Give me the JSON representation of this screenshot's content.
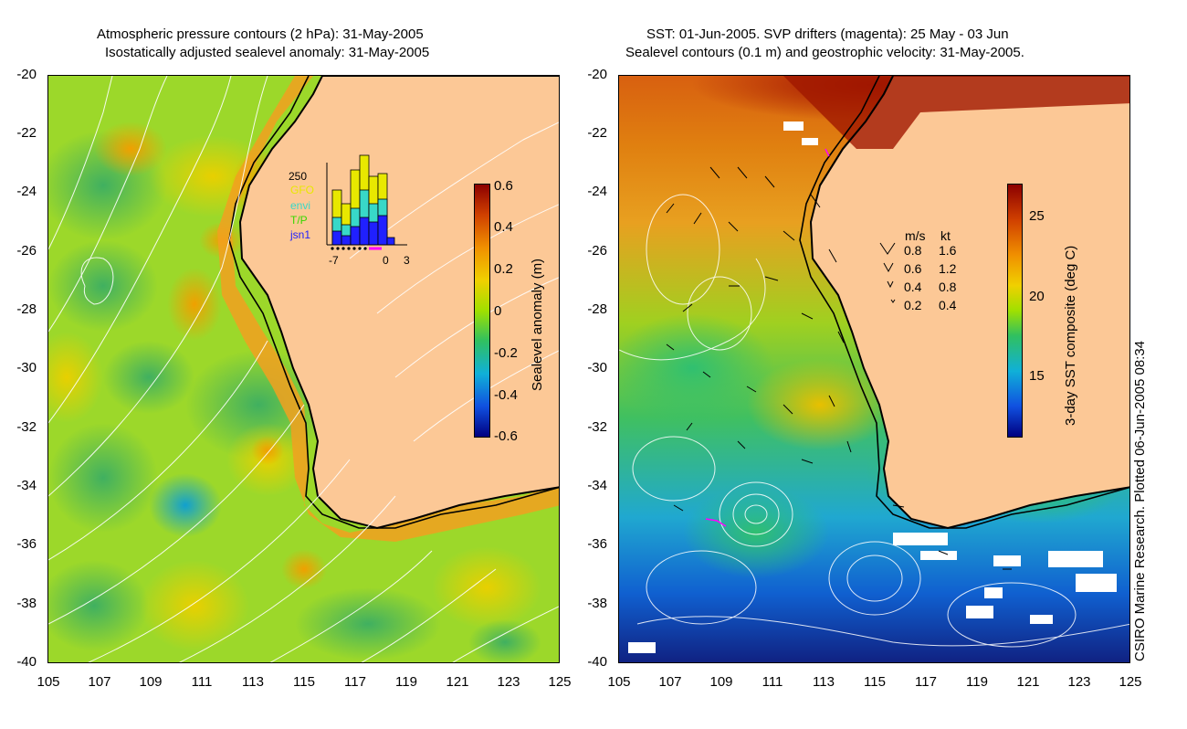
{
  "left": {
    "title_line1": "Atmospheric pressure contours (2 hPa): 31-May-2005",
    "title_line2": "Isostatically adjusted sealevel anomaly: 31-May-2005",
    "colorbar_label": "Sealevel anomaly (m)",
    "colorbar_ticks": [
      "0.6",
      "0.4",
      "0.2",
      "0",
      "-0.2",
      "-0.4",
      "-0.6"
    ],
    "colorbar_range": [
      -0.6,
      0.6
    ],
    "inset": {
      "max_label": "250",
      "legend": [
        {
          "label": "GFO",
          "color": "#e8e800"
        },
        {
          "label": "envi",
          "color": "#38d8c8"
        },
        {
          "label": "T/P",
          "color": "#38d800"
        },
        {
          "label": "jsn1",
          "color": "#2020ff"
        }
      ],
      "x_ticks": [
        "-7",
        "0",
        "3"
      ]
    }
  },
  "right": {
    "title_line1": "SST: 01-Jun-2005. SVP drifters (magenta): 25 May - 03 Jun",
    "title_line2": "Sealevel contours (0.1 m) and geostrophic velocity: 31-May-2005.",
    "colorbar_label": "3-day SST composite (deg C)",
    "colorbar_ticks": [
      "25",
      "20",
      "15"
    ],
    "colorbar_range": [
      11,
      27
    ],
    "velocity_legend": {
      "header_ms": "m/s",
      "header_kt": "kt",
      "rows": [
        {
          "ms": "0.8",
          "kt": "1.6"
        },
        {
          "ms": "0.6",
          "kt": "1.2"
        },
        {
          "ms": "0.4",
          "kt": "0.8"
        },
        {
          "ms": "0.2",
          "kt": "0.4"
        }
      ]
    }
  },
  "y_ticks": [
    "-20",
    "-22",
    "-24",
    "-26",
    "-28",
    "-30",
    "-32",
    "-34",
    "-36",
    "-38",
    "-40"
  ],
  "x_ticks": [
    "105",
    "107",
    "109",
    "111",
    "113",
    "115",
    "117",
    "119",
    "121",
    "123",
    "125"
  ],
  "credit": "CSIRO Marine Research. Plotted 06-Jun-2005 08:34",
  "colors": {
    "land": "#fcc896",
    "coast": "#000000",
    "contour": "#ffffff"
  }
}
